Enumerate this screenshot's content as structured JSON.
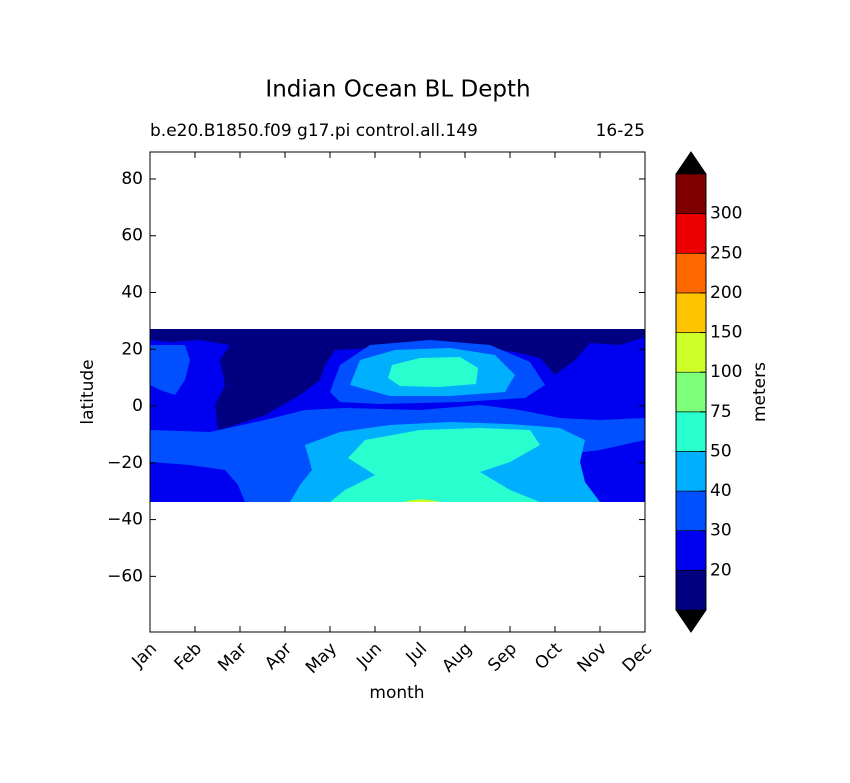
{
  "chart_data": {
    "type": "contour",
    "title": "Indian Ocean BL Depth",
    "subtitle": "b.e20.B1850.f09 g17.pi control.all.149",
    "subtitle_right": "16-25",
    "xlabel": "month",
    "ylabel": "latitude",
    "categories": [
      "Jan",
      "Feb",
      "Mar",
      "Apr",
      "May",
      "Jun",
      "Jul",
      "Aug",
      "Sep",
      "Oct",
      "Nov",
      "Dec"
    ],
    "ylim": [
      -79.6,
      89.5
    ],
    "yticks": [
      {
        "value": -60,
        "label": "−60"
      },
      {
        "value": -40,
        "label": "−40"
      },
      {
        "value": -20,
        "label": "−20"
      },
      0,
      20,
      40,
      60,
      80
    ],
    "colorbar": {
      "label": "meters",
      "ticks": [
        20,
        30,
        40,
        50,
        75,
        100,
        150,
        200,
        250,
        300
      ],
      "colors": [
        "#000080",
        "#0000f0",
        "#0050ff",
        "#00b0ff",
        "#29ffce",
        "#7dff7a",
        "#ceff29",
        "#ffc400",
        "#ff6800",
        "#ee0000",
        "#800000"
      ],
      "extend_color": "#000000"
    }
  }
}
